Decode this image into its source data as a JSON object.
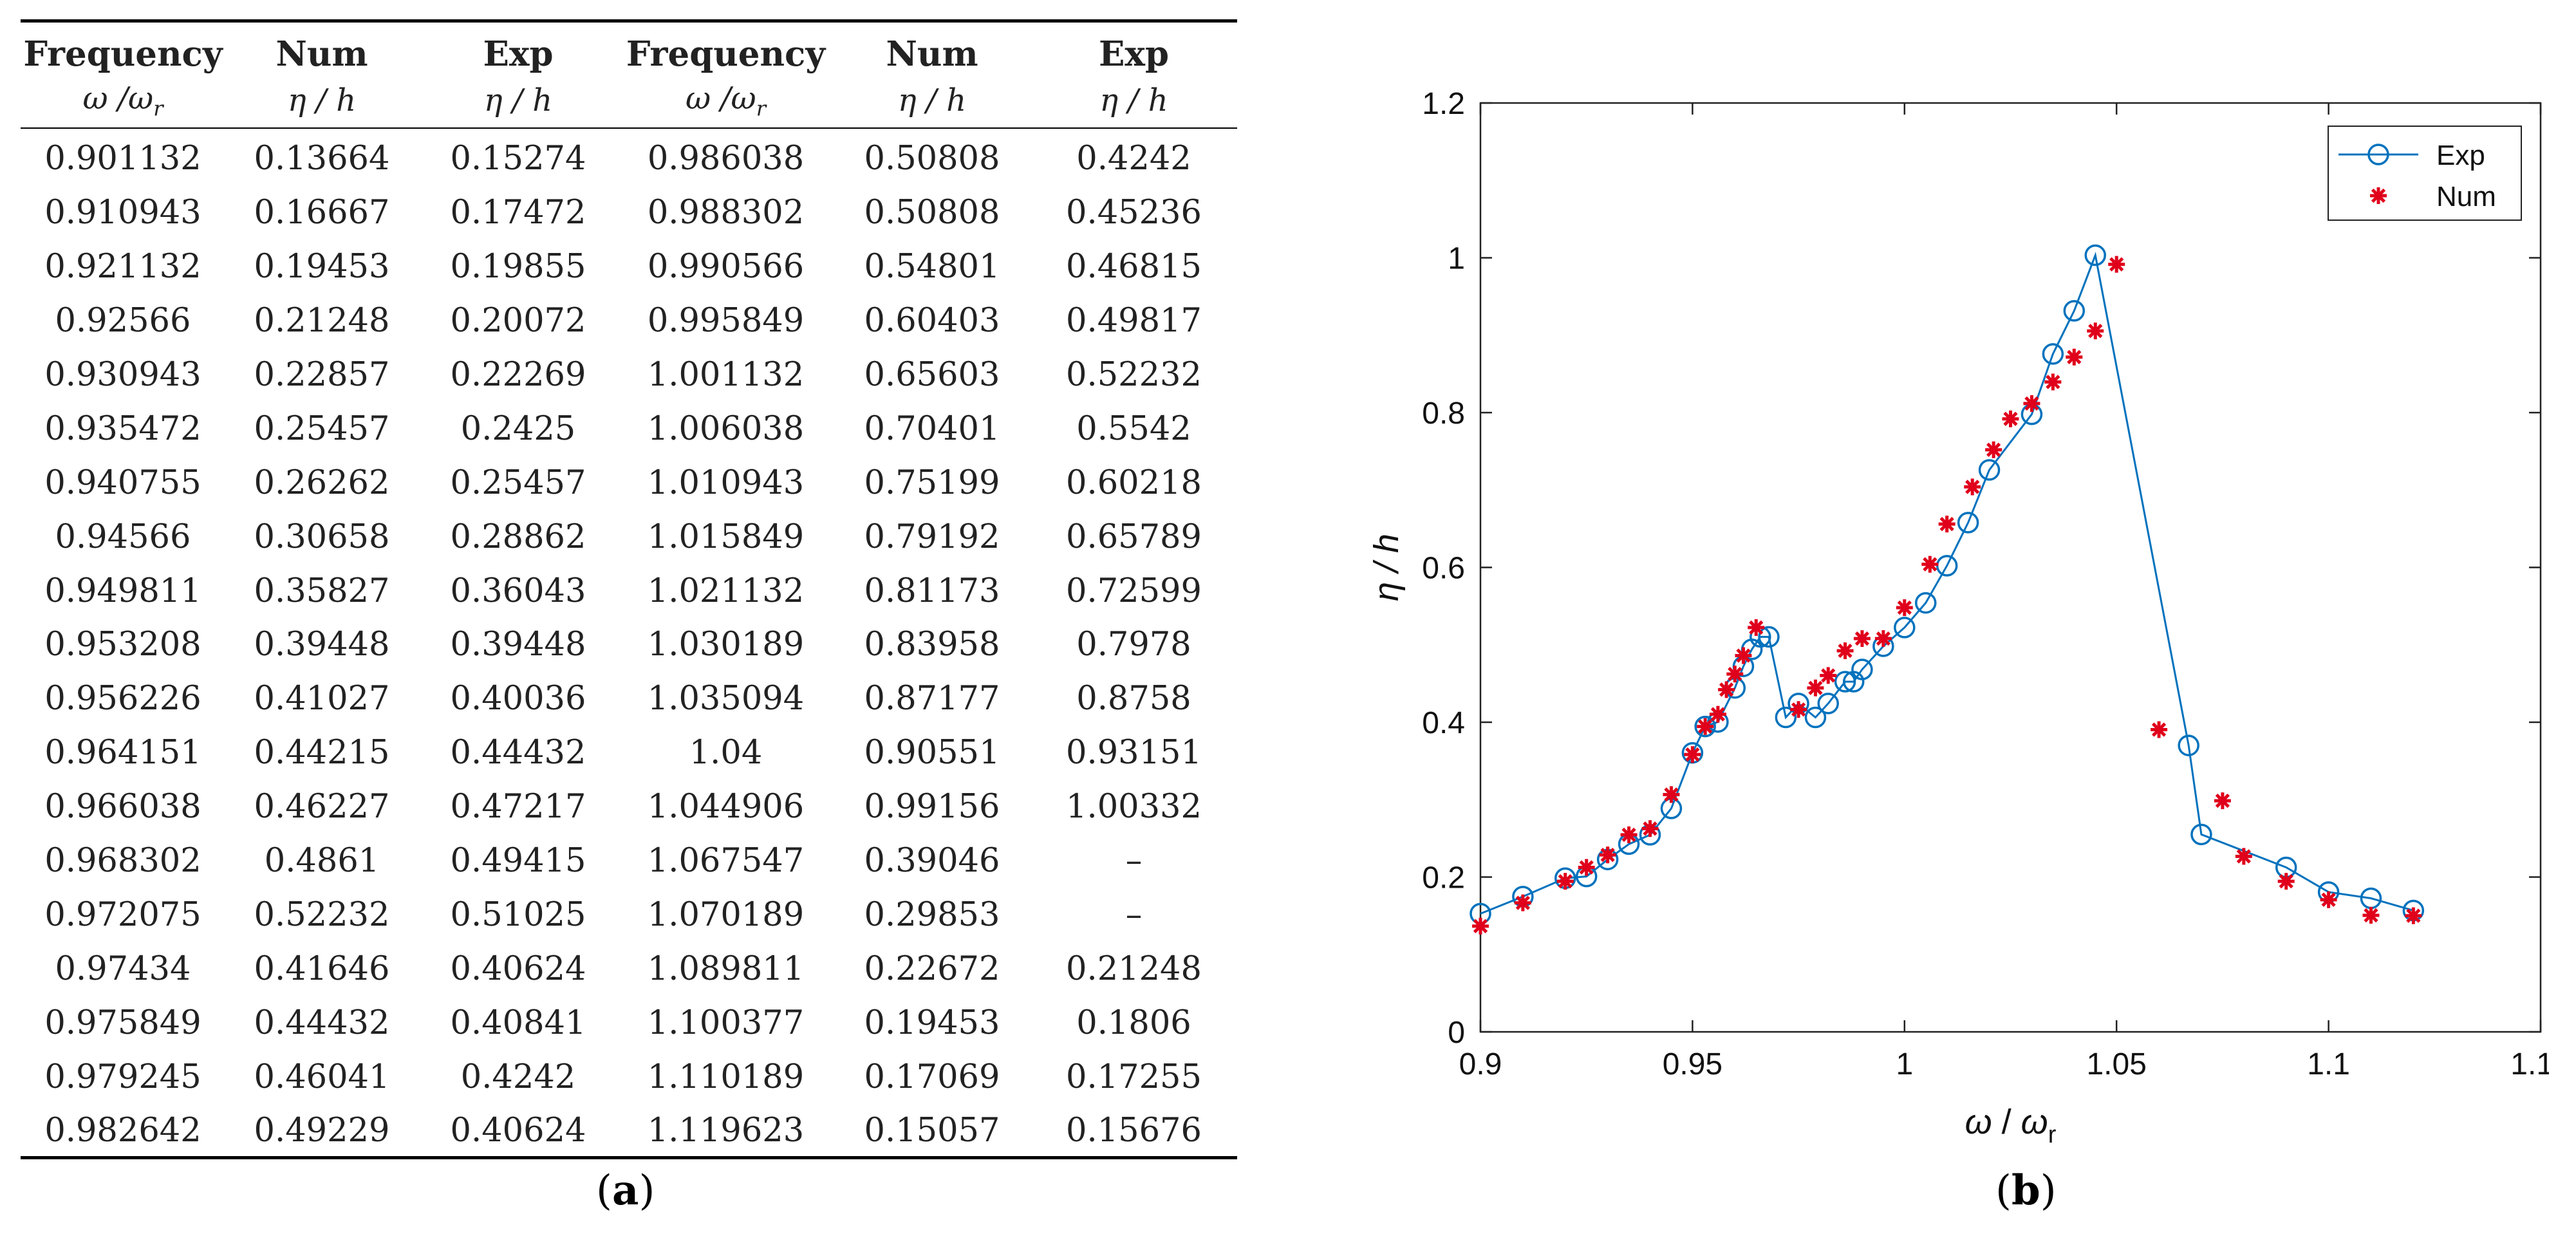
{
  "table": {
    "headers": [
      "Frequency",
      "Num",
      "Exp",
      "Frequency",
      "Num",
      "Exp"
    ],
    "units": [
      "ω /ω",
      "η / h",
      "η / h",
      "ω /ω",
      "η / h",
      "η / h"
    ],
    "unit_subscript": "r",
    "rows": [
      [
        "0.901132",
        "0.13664",
        "0.15274",
        "0.986038",
        "0.50808",
        "0.4242"
      ],
      [
        "0.910943",
        "0.16667",
        "0.17472",
        "0.988302",
        "0.50808",
        "0.45236"
      ],
      [
        "0.921132",
        "0.19453",
        "0.19855",
        "0.990566",
        "0.54801",
        "0.46815"
      ],
      [
        "0.92566",
        "0.21248",
        "0.20072",
        "0.995849",
        "0.60403",
        "0.49817"
      ],
      [
        "0.930943",
        "0.22857",
        "0.22269",
        "1.001132",
        "0.65603",
        "0.52232"
      ],
      [
        "0.935472",
        "0.25457",
        "0.2425",
        "1.006038",
        "0.70401",
        "0.5542"
      ],
      [
        "0.940755",
        "0.26262",
        "0.25457",
        "1.010943",
        "0.75199",
        "0.60218"
      ],
      [
        "0.94566",
        "0.30658",
        "0.28862",
        "1.015849",
        "0.79192",
        "0.65789"
      ],
      [
        "0.949811",
        "0.35827",
        "0.36043",
        "1.021132",
        "0.81173",
        "0.72599"
      ],
      [
        "0.953208",
        "0.39448",
        "0.39448",
        "1.030189",
        "0.83958",
        "0.7978"
      ],
      [
        "0.956226",
        "0.41027",
        "0.40036",
        "1.035094",
        "0.87177",
        "0.8758"
      ],
      [
        "0.964151",
        "0.44215",
        "0.44432",
        "1.04",
        "0.90551",
        "0.93151"
      ],
      [
        "0.966038",
        "0.46227",
        "0.47217",
        "1.044906",
        "0.99156",
        "1.00332"
      ],
      [
        "0.968302",
        "0.4861",
        "0.49415",
        "1.067547",
        "0.39046",
        "–"
      ],
      [
        "0.972075",
        "0.52232",
        "0.51025",
        "1.070189",
        "0.29853",
        "–"
      ],
      [
        "0.97434",
        "0.41646",
        "0.40624",
        "1.089811",
        "0.22672",
        "0.21248"
      ],
      [
        "0.975849",
        "0.44432",
        "0.40841",
        "1.100377",
        "0.19453",
        "0.1806"
      ],
      [
        "0.979245",
        "0.46041",
        "0.4242",
        "1.110189",
        "0.17069",
        "0.17255"
      ],
      [
        "0.982642",
        "0.49229",
        "0.40624",
        "1.119623",
        "0.15057",
        "0.15676"
      ]
    ]
  },
  "captions": {
    "a_open": "(",
    "a_label": "a",
    "a_close": ")",
    "b_open": "(",
    "b_label": "b",
    "b_close": ")"
  },
  "chart_data": {
    "type": "line",
    "title": "",
    "xlabel_omega": "ω",
    "xlabel_sep": " / ",
    "xlabel_omega2": "ω",
    "xlabel_sub": "r",
    "ylabel": "η / h",
    "xlim": [
      0.9,
      1.15
    ],
    "ylim": [
      0,
      1.2
    ],
    "xticks": [
      "0.9",
      "0.95",
      "1",
      "1.05",
      "1.1",
      "1.15"
    ],
    "xtick_values": [
      0.9,
      0.95,
      1.0,
      1.05,
      1.1,
      1.15
    ],
    "yticks": [
      "0",
      "0.2",
      "0.4",
      "0.6",
      "0.8",
      "1",
      "1.2"
    ],
    "ytick_values": [
      0,
      0.2,
      0.4,
      0.6,
      0.8,
      1.0,
      1.2
    ],
    "grid": false,
    "legend_position": "top-right",
    "colors": {
      "exp": "#0072BD",
      "num": "#E0001B"
    },
    "series": [
      {
        "name": "Exp",
        "style": "line-with-open-circles",
        "x": [
          0.9,
          0.91,
          0.92,
          0.925,
          0.93,
          0.935,
          0.94,
          0.945,
          0.95,
          0.953,
          0.956,
          0.96,
          0.962,
          0.964,
          0.966,
          0.968,
          0.972,
          0.975,
          0.979,
          0.982,
          0.986,
          0.988,
          0.99,
          0.995,
          1.0,
          1.005,
          1.01,
          1.015,
          1.02,
          1.03,
          1.035,
          1.04,
          1.045,
          1.067,
          1.07,
          1.09,
          1.1,
          1.11,
          1.12
        ],
        "y": [
          0.15274,
          0.17472,
          0.19855,
          0.20072,
          0.22269,
          0.2425,
          0.25457,
          0.28862,
          0.36043,
          0.39448,
          0.40036,
          0.44432,
          0.47217,
          0.49415,
          0.51025,
          0.51025,
          0.40624,
          0.4242,
          0.40624,
          0.4242,
          0.45236,
          0.45236,
          0.46815,
          0.49817,
          0.52232,
          0.5542,
          0.60218,
          0.65789,
          0.72599,
          0.7978,
          0.8758,
          0.93151,
          1.00332,
          0.37,
          0.255,
          0.21248,
          0.1806,
          0.17255,
          0.15676
        ]
      },
      {
        "name": "Num",
        "style": "asterisk-markers",
        "x": [
          0.9,
          0.91,
          0.92,
          0.925,
          0.93,
          0.935,
          0.94,
          0.945,
          0.95,
          0.953,
          0.956,
          0.958,
          0.96,
          0.962,
          0.965,
          0.975,
          0.979,
          0.982,
          0.986,
          0.99,
          0.995,
          1.0,
          1.006,
          1.01,
          1.016,
          1.021,
          1.025,
          1.03,
          1.035,
          1.04,
          1.045,
          1.05,
          1.06,
          1.075,
          1.08,
          1.09,
          1.1,
          1.11,
          1.12
        ],
        "y": [
          0.13664,
          0.16667,
          0.19453,
          0.21248,
          0.22857,
          0.25457,
          0.26262,
          0.30658,
          0.35827,
          0.39448,
          0.41027,
          0.44215,
          0.46227,
          0.4861,
          0.52232,
          0.41646,
          0.44432,
          0.46041,
          0.49229,
          0.50808,
          0.50808,
          0.54801,
          0.60403,
          0.65603,
          0.70401,
          0.75199,
          0.79192,
          0.81173,
          0.83958,
          0.87177,
          0.90551,
          0.99156,
          0.39046,
          0.29853,
          0.22672,
          0.19453,
          0.17069,
          0.15057,
          0.15
        ]
      }
    ]
  }
}
